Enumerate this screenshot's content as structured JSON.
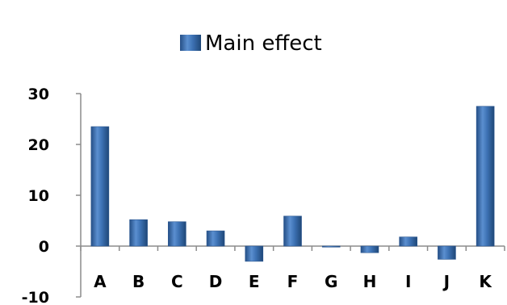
{
  "chart_data": {
    "type": "bar",
    "categories": [
      "A",
      "B",
      "C",
      "D",
      "E",
      "F",
      "G",
      "H",
      "I",
      "J",
      "K"
    ],
    "series": [
      {
        "name": "Main effect",
        "values": [
          23.5,
          5.2,
          4.8,
          3.0,
          -3.0,
          5.9,
          -0.2,
          -1.3,
          1.8,
          -2.6,
          27.5
        ]
      }
    ],
    "ylim": [
      -10,
      30
    ],
    "yticks": [
      "30",
      "20",
      "10",
      "0",
      "-10"
    ],
    "legend_position": "top-center",
    "grid": false,
    "color": "#3a6fb0"
  }
}
